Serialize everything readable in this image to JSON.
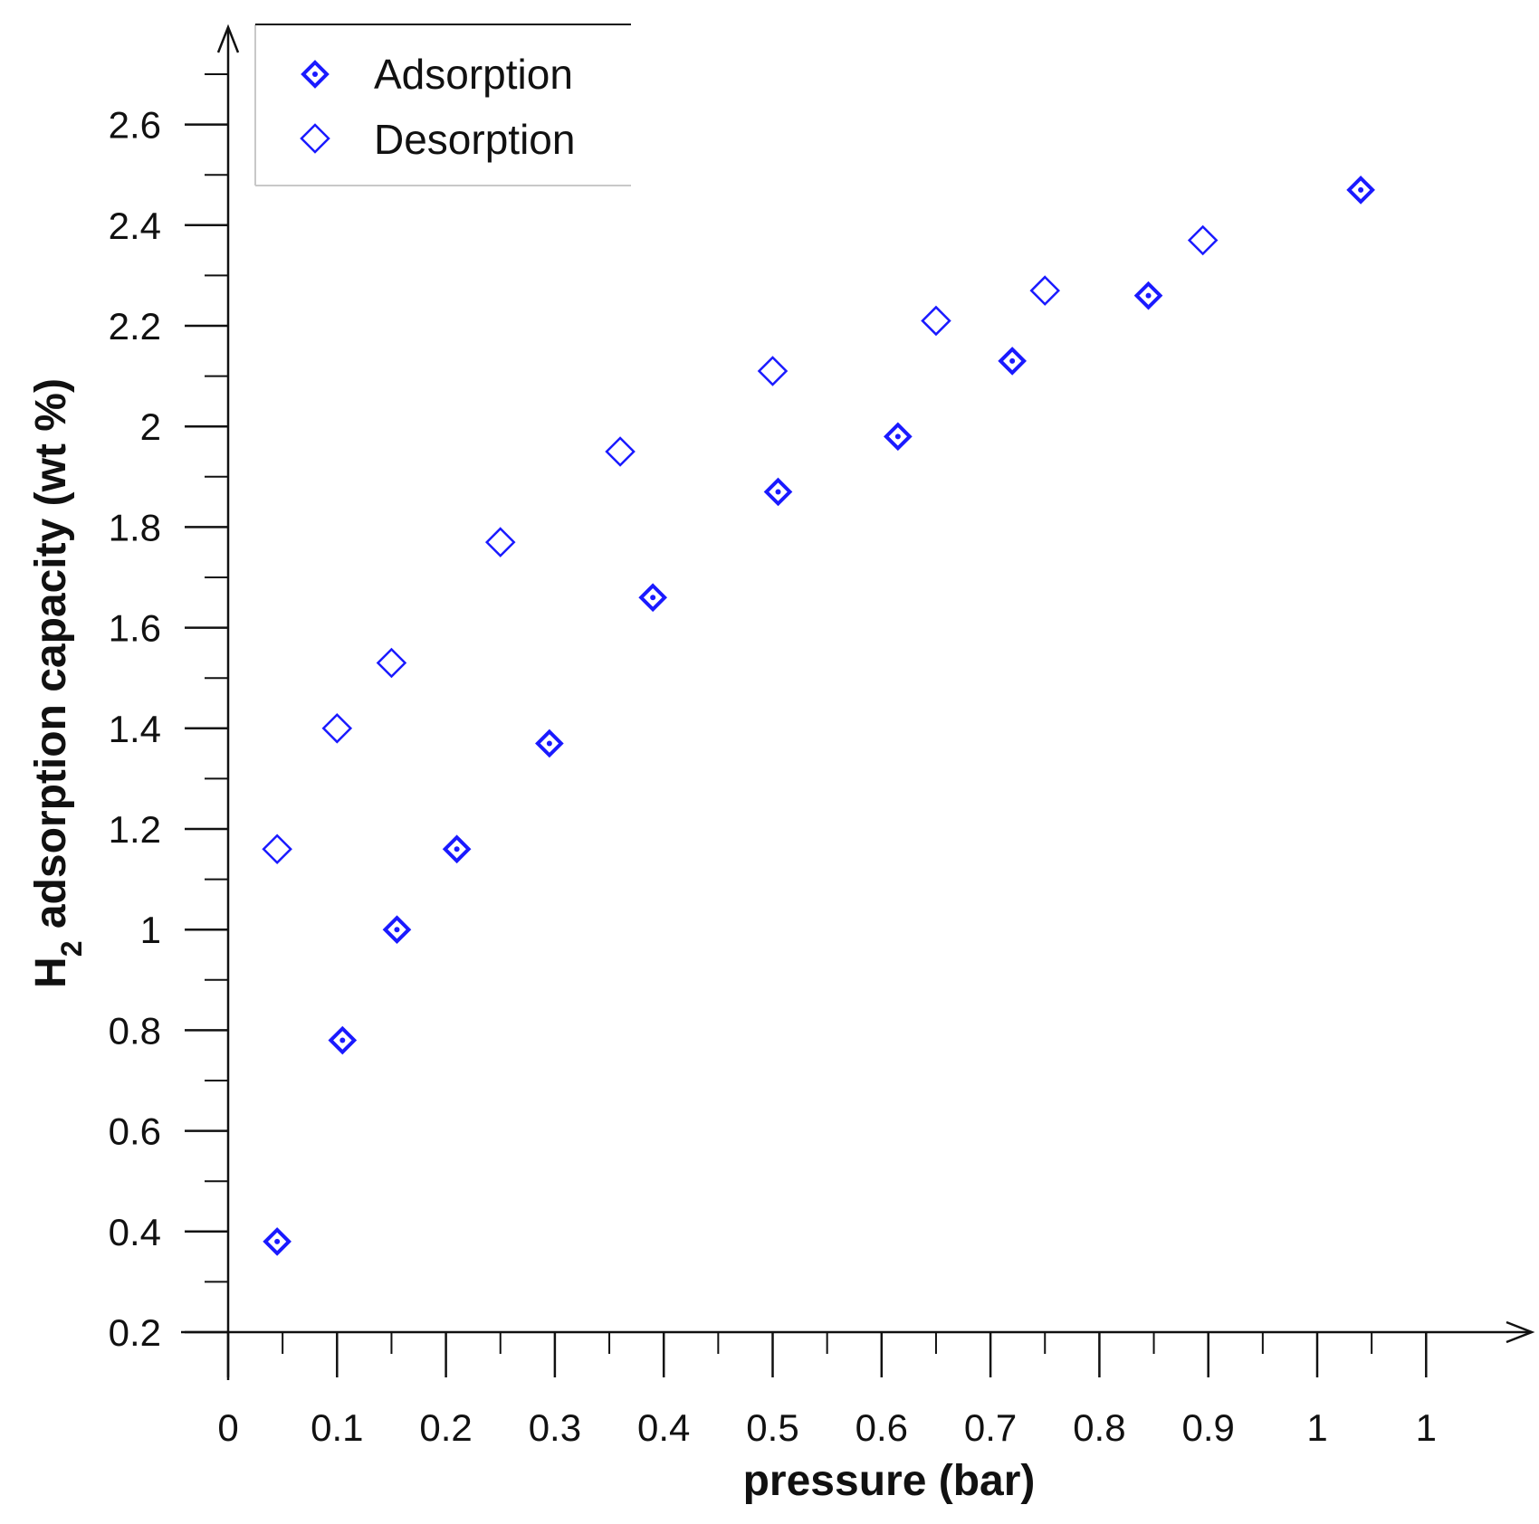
{
  "chart_data": {
    "type": "scatter",
    "title": "",
    "xlabel": "pressure (bar)",
    "ylabel_prefix": "H",
    "ylabel_subscript": "2",
    "ylabel_rest": " adsorption capacity (wt %)",
    "xlim": [
      0,
      1.2
    ],
    "ylim": [
      0.2,
      2.8
    ],
    "x_tick_labels": [
      "0",
      "0.1",
      "0.2",
      "0.3",
      "0.4",
      "0.5",
      "0.6",
      "0.7",
      "0.8",
      "0.9",
      "1",
      "1"
    ],
    "y_tick_labels": [
      "0.2",
      "0.4",
      "0.6",
      "0.8",
      "1",
      "1.2",
      "1.4",
      "1.6",
      "1.8",
      "2",
      "2.2",
      "2.4",
      "2.6"
    ],
    "legend": {
      "placement": "top-left",
      "entries": [
        "Adsorption",
        "Desorption"
      ]
    },
    "series": [
      {
        "name": "Adsorption",
        "marker": "diamond-dot",
        "color": "#1a1aff",
        "x": [
          0.045,
          0.105,
          0.155,
          0.21,
          0.295,
          0.39,
          0.505,
          0.615,
          0.72,
          0.845,
          1.04
        ],
        "y": [
          0.38,
          0.78,
          1.0,
          1.16,
          1.37,
          1.66,
          1.87,
          1.98,
          2.13,
          2.26,
          2.47
        ]
      },
      {
        "name": "Desorption",
        "marker": "diamond-open",
        "color": "#1a1aff",
        "x": [
          0.045,
          0.1,
          0.15,
          0.25,
          0.36,
          0.5,
          0.65,
          0.75,
          0.895
        ],
        "y": [
          1.16,
          1.4,
          1.53,
          1.77,
          1.95,
          2.11,
          2.21,
          2.27,
          2.37
        ]
      }
    ]
  }
}
